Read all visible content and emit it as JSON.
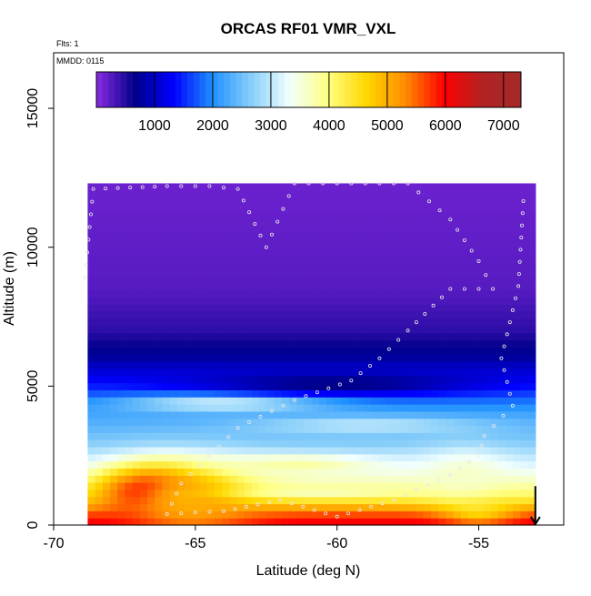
{
  "chart_data": {
    "type": "heatmap",
    "title": "ORCAS RF01 VMR_VXL",
    "annotations": [
      "Flts: 1",
      "MMDD: 0115"
    ],
    "xlabel": "Latitude (deg N)",
    "ylabel": "Altitude (m)",
    "xlim": [
      -70,
      -52
    ],
    "ylim": [
      0,
      17000
    ],
    "x_ticks": [
      -70,
      -65,
      -60,
      -55
    ],
    "x_tick_labels": [
      "-70",
      "-65",
      "-60",
      "-55"
    ],
    "y_ticks": [
      0,
      5000,
      10000,
      15000
    ],
    "y_tick_labels": [
      "0",
      "5000",
      "10000",
      "15000"
    ],
    "colorbar": {
      "min": 0,
      "max": 7300,
      "ticks": [
        1000,
        2000,
        3000,
        4000,
        5000,
        6000,
        7000
      ],
      "tick_labels": [
        "1000",
        "2000",
        "3000",
        "4000",
        "5000",
        "6000",
        "7000"
      ],
      "colors": [
        "#8b2be2",
        "#00008b",
        "#0000ff",
        "#1e90ff",
        "#87cefa",
        "#f0ffff",
        "#ffff80",
        "#ffd700",
        "#ff8c00",
        "#ff0000",
        "#b22222",
        "#a52a2a"
      ]
    },
    "domain": {
      "lat_min": -68.8,
      "lat_max": -53.0,
      "alt_max": 12300
    },
    "field_profile": [
      {
        "altitude": 0,
        "value": 6200
      },
      {
        "altitude": 400,
        "value": 5600
      },
      {
        "altitude": 1000,
        "value": 4200
      },
      {
        "altitude": 2000,
        "value": 3300
      },
      {
        "altitude": 3000,
        "value": 2600
      },
      {
        "altitude": 4000,
        "value": 2200
      },
      {
        "altitude": 5000,
        "value": 1500
      },
      {
        "altitude": 6000,
        "value": 800
      },
      {
        "altitude": 7000,
        "value": 450
      },
      {
        "altitude": 8500,
        "value": 250
      },
      {
        "altitude": 12300,
        "value": 150
      }
    ],
    "features": [
      {
        "lat": -66.5,
        "altitude": 1200,
        "value": 6500,
        "lat_width": 1.8,
        "alt_width": 900
      },
      {
        "lat": -65.2,
        "altitude": 900,
        "value": 5000,
        "lat_width": 2.2,
        "alt_width": 1200
      },
      {
        "lat": -61.5,
        "altitude": 2200,
        "value": 3800,
        "lat_width": 3.0,
        "alt_width": 350
      },
      {
        "lat": -64.0,
        "altitude": 4400,
        "value": 3200,
        "lat_width": 3.5,
        "alt_width": 300
      },
      {
        "lat": -59.0,
        "altitude": 3600,
        "value": 3000,
        "lat_width": 4.0,
        "alt_width": 300
      },
      {
        "lat": -55.0,
        "altitude": 600,
        "value": 4600,
        "lat_width": 1.2,
        "alt_width": 500
      },
      {
        "lat": -55.5,
        "altitude": 1800,
        "value": 3600,
        "lat_width": 1.5,
        "alt_width": 900
      },
      {
        "lat": -60.0,
        "altitude": 5100,
        "value": 600,
        "lat_width": 5.0,
        "alt_width": 400
      },
      {
        "lat": -60.5,
        "altitude": 1200,
        "value": 3700,
        "lat_width": 3.0,
        "alt_width": 200
      }
    ],
    "flight_track": [
      {
        "lat": -68.9,
        "altitude": 8900
      },
      {
        "lat": -68.6,
        "altitude": 12100
      },
      {
        "lat": -66.0,
        "altitude": 12200
      },
      {
        "lat": -64.5,
        "altitude": 12200
      },
      {
        "lat": -63.5,
        "altitude": 12100
      },
      {
        "lat": -62.5,
        "altitude": 10000
      },
      {
        "lat": -61.5,
        "altitude": 12300
      },
      {
        "lat": -59.5,
        "altitude": 12300
      },
      {
        "lat": -57.5,
        "altitude": 12300
      },
      {
        "lat": -56.0,
        "altitude": 11000
      },
      {
        "lat": -55.0,
        "altitude": 9500
      },
      {
        "lat": -54.5,
        "altitude": 8500
      },
      {
        "lat": -56.0,
        "altitude": 8500
      },
      {
        "lat": -57.5,
        "altitude": 7000
      },
      {
        "lat": -58.5,
        "altitude": 6000
      },
      {
        "lat": -59.5,
        "altitude": 5200
      },
      {
        "lat": -61.5,
        "altitude": 4500
      },
      {
        "lat": -63.5,
        "altitude": 3500
      },
      {
        "lat": -64.5,
        "altitude": 2500
      },
      {
        "lat": -65.5,
        "altitude": 1500
      },
      {
        "lat": -66.0,
        "altitude": 400
      },
      {
        "lat": -64.0,
        "altitude": 500
      },
      {
        "lat": -62.0,
        "altitude": 900
      },
      {
        "lat": -60.0,
        "altitude": 300
      },
      {
        "lat": -58.0,
        "altitude": 900
      },
      {
        "lat": -56.0,
        "altitude": 1800
      },
      {
        "lat": -55.0,
        "altitude": 2500
      },
      {
        "lat": -54.8,
        "altitude": 3200
      },
      {
        "lat": -53.8,
        "altitude": 4300
      },
      {
        "lat": -54.2,
        "altitude": 6000
      },
      {
        "lat": -53.6,
        "altitude": 8600
      },
      {
        "lat": -53.4,
        "altitude": 12100
      }
    ],
    "arrow_marker": {
      "lat": -53.0,
      "altitude": 500,
      "direction": "down"
    }
  }
}
